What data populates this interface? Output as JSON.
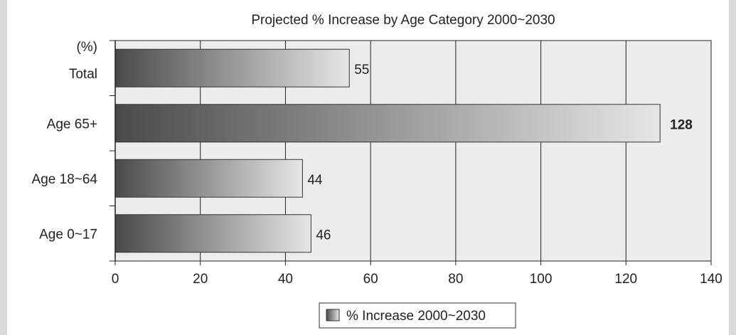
{
  "chart_data": {
    "type": "bar",
    "orientation": "horizontal",
    "title": "Projected % Increase by Age Category 2000~2030",
    "unit_label": "(%)",
    "categories": [
      "Total",
      "Age 65+",
      "Age 18~64",
      "Age 0~17"
    ],
    "series": [
      {
        "name": "% Increase 2000~2030",
        "values": [
          55,
          128,
          44,
          46
        ],
        "value_labels": [
          "55",
          "128",
          "44",
          "46"
        ]
      }
    ],
    "xlim": [
      0,
      140
    ],
    "xticks": [
      "0",
      "20",
      "40",
      "60",
      "80",
      "100",
      "120",
      "140"
    ],
    "grid": true,
    "legend_position": "bottom-center",
    "colors": {
      "plot_bg": "#ececec",
      "bar_dark": "#4a4a4a",
      "bar_light": "#e6e6e6",
      "grid": "#222222",
      "frame_side": "#d9d9d9"
    }
  }
}
